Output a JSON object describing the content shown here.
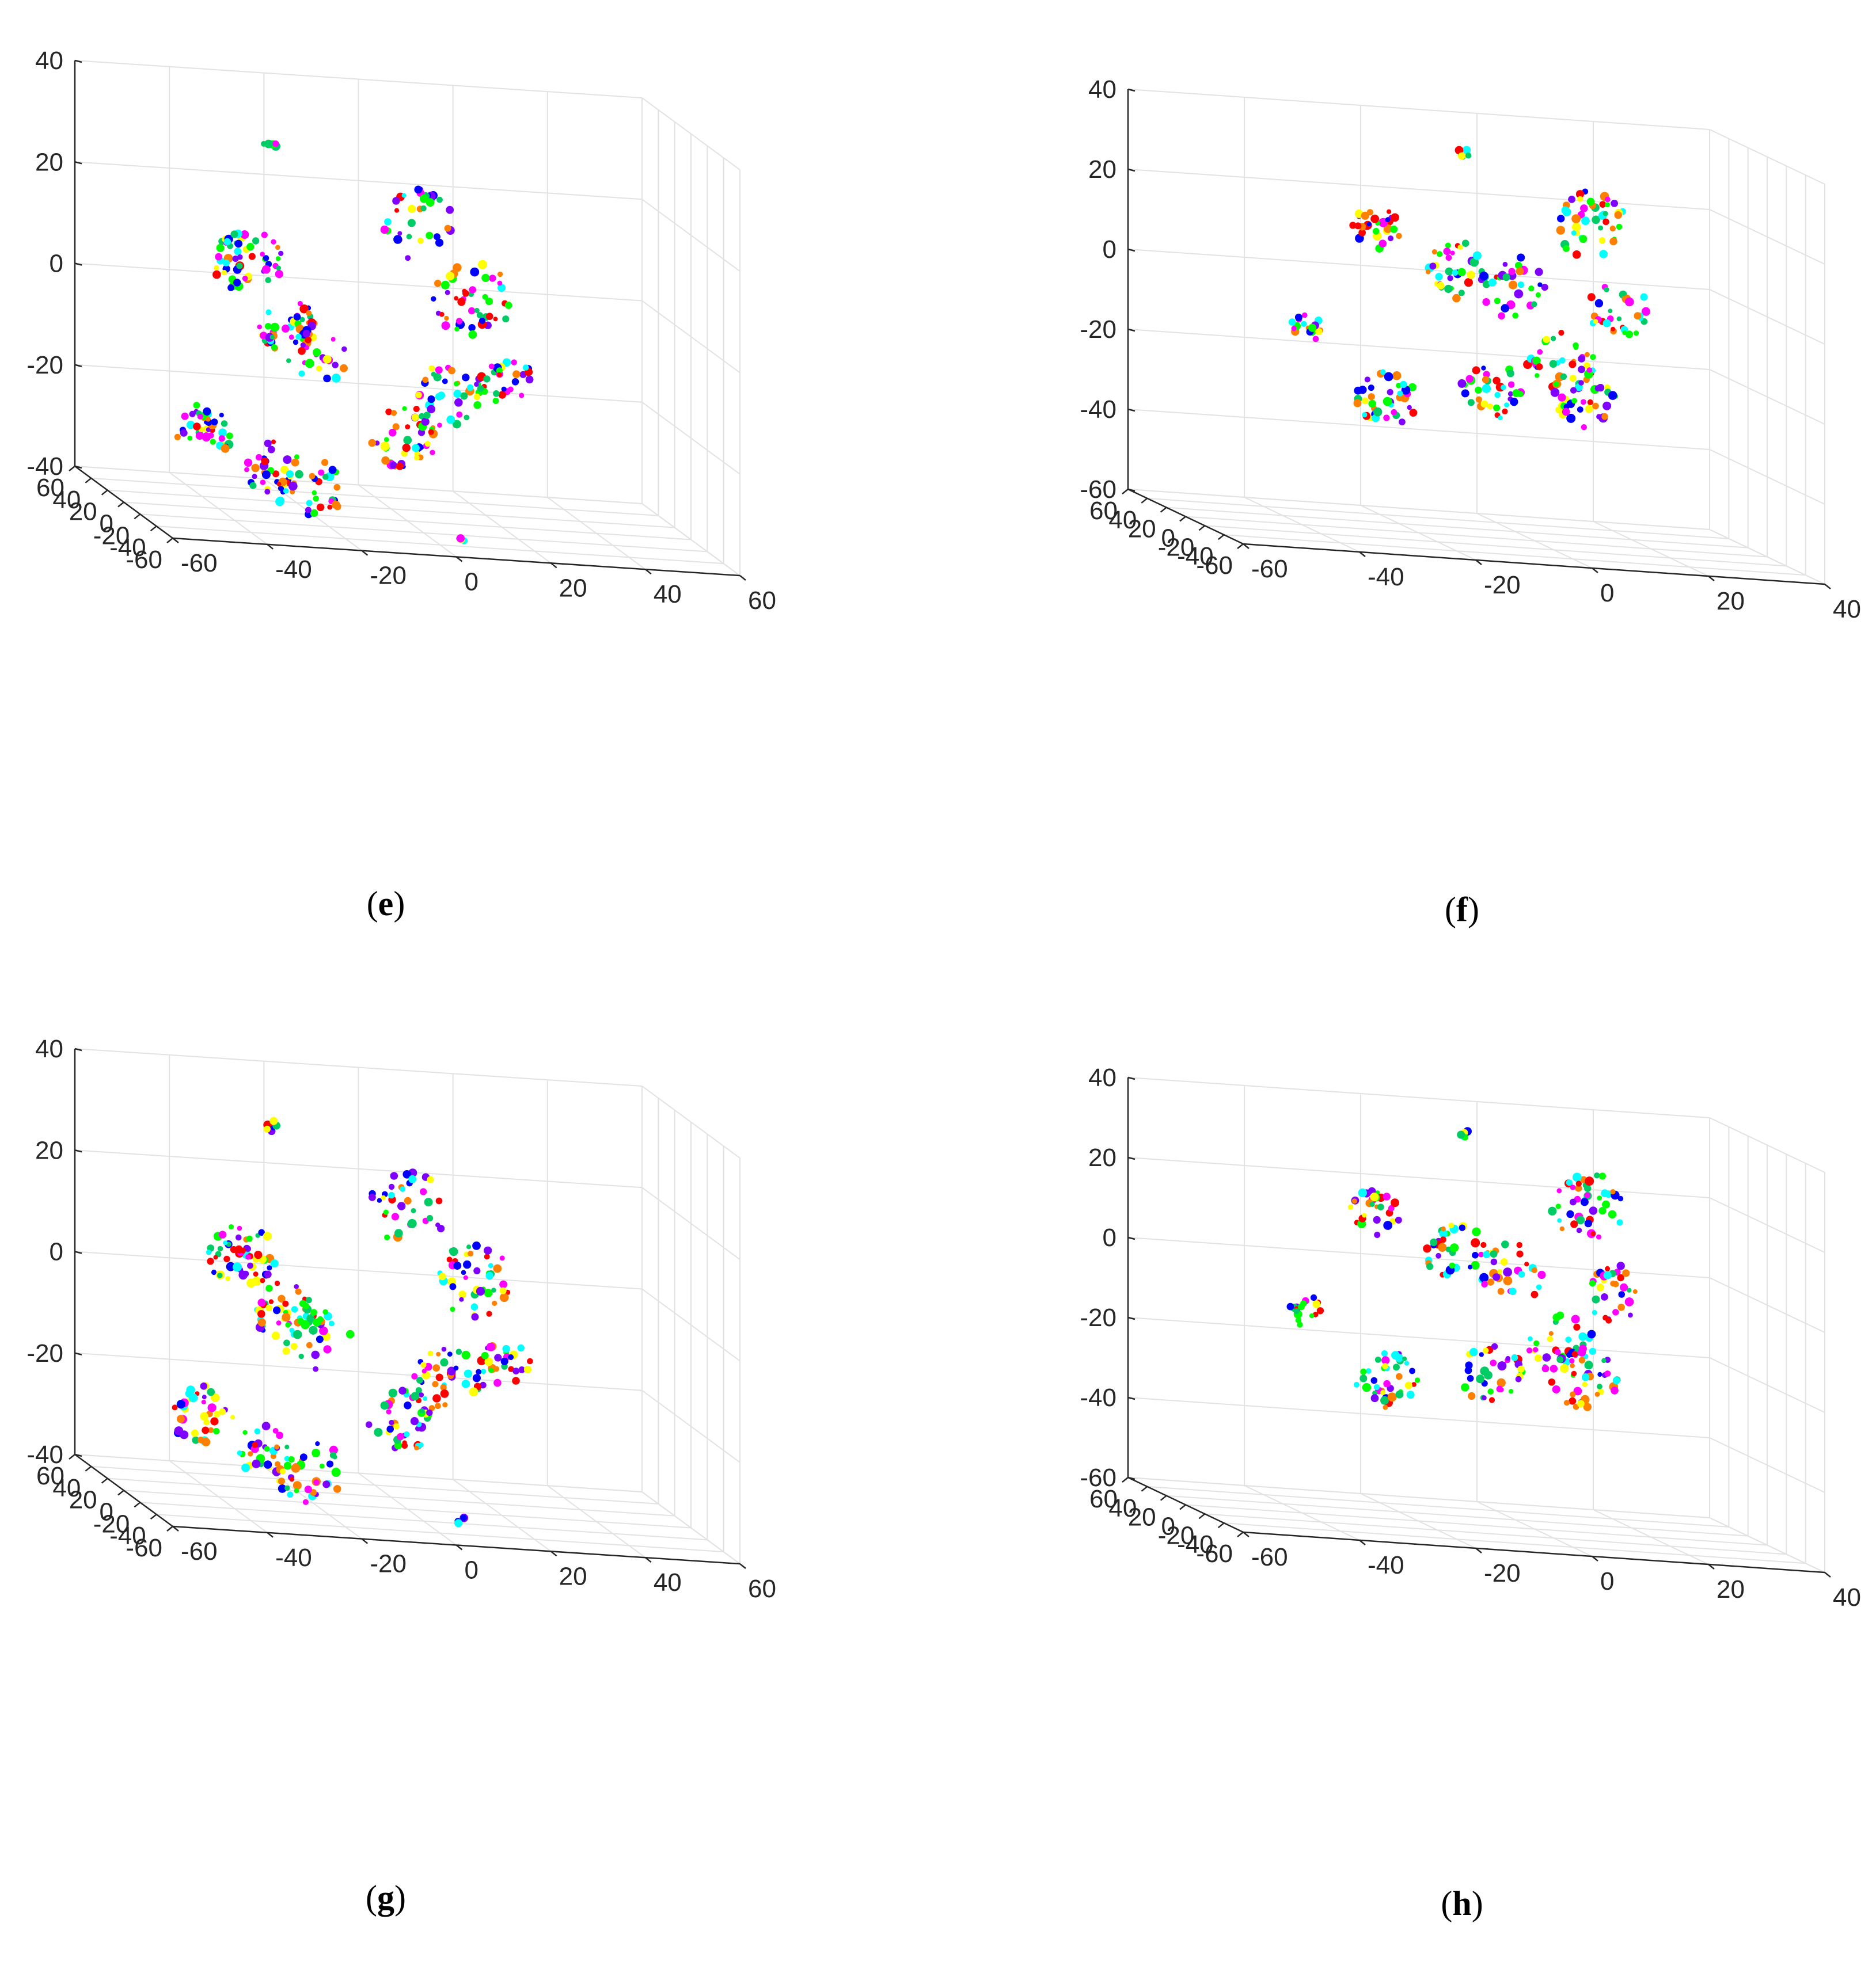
{
  "chart_data": [
    {
      "panel": "e",
      "type": "scatter",
      "caption_open": "(",
      "caption_letter": "e",
      "caption_close": ")",
      "title": "",
      "xlabel": "",
      "ylabel": "",
      "zlabel": "",
      "z_ticks": [
        "40",
        "20",
        "0",
        "-20",
        "-40"
      ],
      "x_ticks": [
        "60",
        "40",
        "20",
        "0",
        "-20",
        "-40",
        "-60"
      ],
      "y_ticks": [
        "-60",
        "-40",
        "-20",
        "0",
        "20",
        "40",
        "60"
      ],
      "grid": true,
      "marker_colors": [
        "#0000ff",
        "#00ff00",
        "#ff00ff",
        "#ff0000",
        "#ffff00",
        "#00ffff",
        "#ff8000",
        "#8000ff",
        "#00cc66"
      ],
      "clusters": [
        {
          "cx": 470,
          "cy": 250,
          "n": 6,
          "spread": 12
        },
        {
          "cx": 430,
          "cy": 455,
          "n": 55,
          "spread": 60
        },
        {
          "cx": 500,
          "cy": 570,
          "n": 45,
          "spread": 55
        },
        {
          "cx": 360,
          "cy": 750,
          "n": 40,
          "spread": 55
        },
        {
          "cx": 470,
          "cy": 810,
          "n": 30,
          "spread": 50
        },
        {
          "cx": 560,
          "cy": 620,
          "n": 25,
          "spread": 60
        },
        {
          "cx": 720,
          "cy": 390,
          "n": 35,
          "spread": 70
        },
        {
          "cx": 820,
          "cy": 520,
          "n": 45,
          "spread": 70
        },
        {
          "cx": 780,
          "cy": 690,
          "n": 40,
          "spread": 65
        },
        {
          "cx": 880,
          "cy": 660,
          "n": 25,
          "spread": 45
        },
        {
          "cx": 700,
          "cy": 760,
          "n": 45,
          "spread": 60
        },
        {
          "cx": 540,
          "cy": 850,
          "n": 35,
          "spread": 60
        },
        {
          "cx": 800,
          "cy": 940,
          "n": 4,
          "spread": 8
        }
      ]
    },
    {
      "panel": "f",
      "type": "scatter",
      "caption_open": "(",
      "caption_letter": "f",
      "caption_close": ")",
      "title": "",
      "xlabel": "",
      "ylabel": "",
      "zlabel": "",
      "z_ticks": [
        "40",
        "20",
        "0",
        "-20",
        "-40",
        "-60"
      ],
      "x_ticks": [
        "60",
        "40",
        "20",
        "0",
        "-20",
        "-40",
        "-60"
      ],
      "y_ticks": [
        "-60",
        "-40",
        "-20",
        "0",
        "20",
        "40"
      ],
      "grid": true,
      "marker_colors": [
        "#0000ff",
        "#00ff00",
        "#ff00ff",
        "#ff0000",
        "#ffff00",
        "#00ffff",
        "#ff8000",
        "#8000ff",
        "#00cc66"
      ],
      "clusters": [
        {
          "cx": 912,
          "cy": 265,
          "n": 6,
          "spread": 12
        },
        {
          "cx": 1130,
          "cy": 390,
          "n": 45,
          "spread": 65
        },
        {
          "cx": 760,
          "cy": 400,
          "n": 30,
          "spread": 45
        },
        {
          "cx": 900,
          "cy": 470,
          "n": 35,
          "spread": 55
        },
        {
          "cx": 1000,
          "cy": 500,
          "n": 30,
          "spread": 60
        },
        {
          "cx": 1180,
          "cy": 540,
          "n": 30,
          "spread": 55
        },
        {
          "cx": 1080,
          "cy": 630,
          "n": 35,
          "spread": 60
        },
        {
          "cx": 640,
          "cy": 570,
          "n": 18,
          "spread": 30
        },
        {
          "cx": 780,
          "cy": 690,
          "n": 40,
          "spread": 55
        },
        {
          "cx": 960,
          "cy": 680,
          "n": 35,
          "spread": 55
        },
        {
          "cx": 1120,
          "cy": 690,
          "n": 40,
          "spread": 60
        }
      ]
    },
    {
      "panel": "g",
      "type": "scatter",
      "caption_open": "(",
      "caption_letter": "g",
      "caption_close": ")",
      "title": "",
      "xlabel": "",
      "ylabel": "",
      "zlabel": "",
      "z_ticks": [
        "40",
        "20",
        "0",
        "-20",
        "-40"
      ],
      "x_ticks": [
        "60",
        "40",
        "20",
        "0",
        "-20",
        "-40",
        "-60"
      ],
      "y_ticks": [
        "-60",
        "-40",
        "-20",
        "0",
        "20",
        "40",
        "60"
      ],
      "grid": true,
      "marker_colors": [
        "#0000ff",
        "#00ff00",
        "#ff00ff",
        "#ff0000",
        "#ffff00",
        "#00ffff",
        "#ff8000",
        "#8000ff",
        "#00cc66"
      ],
      "clusters": [
        {
          "cx": 470,
          "cy": 240,
          "n": 6,
          "spread": 12
        },
        {
          "cx": 420,
          "cy": 465,
          "n": 55,
          "spread": 60
        },
        {
          "cx": 490,
          "cy": 560,
          "n": 45,
          "spread": 55
        },
        {
          "cx": 350,
          "cy": 740,
          "n": 40,
          "spread": 55
        },
        {
          "cx": 460,
          "cy": 800,
          "n": 30,
          "spread": 50
        },
        {
          "cx": 550,
          "cy": 610,
          "n": 25,
          "spread": 60
        },
        {
          "cx": 710,
          "cy": 380,
          "n": 35,
          "spread": 70
        },
        {
          "cx": 820,
          "cy": 510,
          "n": 45,
          "spread": 70
        },
        {
          "cx": 780,
          "cy": 680,
          "n": 40,
          "spread": 65
        },
        {
          "cx": 880,
          "cy": 650,
          "n": 25,
          "spread": 45
        },
        {
          "cx": 700,
          "cy": 750,
          "n": 45,
          "spread": 60
        },
        {
          "cx": 540,
          "cy": 840,
          "n": 35,
          "spread": 60
        },
        {
          "cx": 800,
          "cy": 925,
          "n": 4,
          "spread": 8
        }
      ]
    },
    {
      "panel": "h",
      "type": "scatter",
      "caption_open": "(",
      "caption_letter": "h",
      "caption_close": ")",
      "title": "",
      "xlabel": "",
      "ylabel": "",
      "zlabel": "",
      "z_ticks": [
        "40",
        "20",
        "0",
        "-20",
        "-40",
        "-60"
      ],
      "x_ticks": [
        "60",
        "40",
        "20",
        "0",
        "-20",
        "-40",
        "-60"
      ],
      "y_ticks": [
        "-60",
        "-40",
        "-20",
        "0",
        "20",
        "40"
      ],
      "grid": true,
      "marker_colors": [
        "#0000ff",
        "#00ff00",
        "#ff00ff",
        "#ff0000",
        "#ffff00",
        "#00ffff",
        "#ff8000",
        "#8000ff",
        "#00cc66"
      ],
      "clusters": [
        {
          "cx": 912,
          "cy": 250,
          "n": 6,
          "spread": 12
        },
        {
          "cx": 1130,
          "cy": 380,
          "n": 45,
          "spread": 65
        },
        {
          "cx": 760,
          "cy": 390,
          "n": 30,
          "spread": 45
        },
        {
          "cx": 900,
          "cy": 460,
          "n": 35,
          "spread": 55
        },
        {
          "cx": 1000,
          "cy": 490,
          "n": 30,
          "spread": 60
        },
        {
          "cx": 1180,
          "cy": 530,
          "n": 30,
          "spread": 55
        },
        {
          "cx": 1080,
          "cy": 620,
          "n": 35,
          "spread": 60
        },
        {
          "cx": 640,
          "cy": 560,
          "n": 18,
          "spread": 30
        },
        {
          "cx": 780,
          "cy": 680,
          "n": 40,
          "spread": 55
        },
        {
          "cx": 960,
          "cy": 670,
          "n": 35,
          "spread": 55
        },
        {
          "cx": 1120,
          "cy": 680,
          "n": 40,
          "spread": 60
        }
      ]
    }
  ]
}
